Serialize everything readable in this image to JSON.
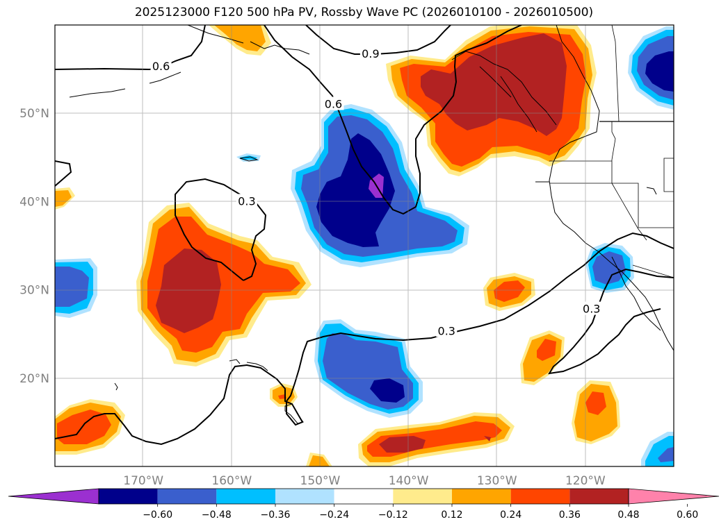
{
  "title": "2025123000 F120 500 hPa PV, Rossby Wave PC (2026010100 - 2026010500)",
  "map": {
    "projection": "lat-lon",
    "lon_range": [
      -180,
      -110
    ],
    "lat_range": [
      10,
      60
    ],
    "gridlines": true,
    "lat_ticks": [
      {
        "value": 20,
        "label": "20°N"
      },
      {
        "value": 30,
        "label": "30°N"
      },
      {
        "value": 40,
        "label": "40°N"
      },
      {
        "value": 50,
        "label": "50°N"
      }
    ],
    "lon_ticks": [
      {
        "value": -170,
        "label": "170°W"
      },
      {
        "value": -160,
        "label": "160°W"
      },
      {
        "value": -150,
        "label": "150°W"
      },
      {
        "value": -140,
        "label": "140°W"
      },
      {
        "value": -130,
        "label": "130°W"
      },
      {
        "value": -120,
        "label": "120°W"
      }
    ],
    "contour_labels": [
      {
        "text": "0.6",
        "lon": -168,
        "lat": 55.3
      },
      {
        "text": "0.9",
        "lon": -144.3,
        "lat": 56.7
      },
      {
        "text": "0.6",
        "lon": -148.5,
        "lat": 51.0
      },
      {
        "text": "0.3",
        "lon": -158.3,
        "lat": 40.0
      },
      {
        "text": "0.3",
        "lon": -135.7,
        "lat": 25.3
      },
      {
        "text": "0.3",
        "lon": -119.3,
        "lat": 27.8
      }
    ]
  },
  "colorbar": {
    "ticks": [
      "−0.60",
      "−0.48",
      "−0.36",
      "−0.24",
      "−0.12",
      "0.12",
      "0.24",
      "0.36",
      "0.48",
      "0.60"
    ],
    "colors": [
      "#9b30d0",
      "#00008b",
      "#3a5fcd",
      "#00bfff",
      "#b0e2ff",
      "#ffffff",
      "#ffeb8c",
      "#ffa500",
      "#ff4500",
      "#b22222",
      "#ff82ab"
    ],
    "extend": "both"
  },
  "legend_colors": {
    "purple": "#9b30d0",
    "navy": "#00008b",
    "blue": "#3a5fcd",
    "cyan": "#00bfff",
    "lightblue": "#b0e2ff",
    "yellow": "#ffeb8c",
    "orange": "#ffa500",
    "redorange": "#ff4500",
    "darkred": "#b22222",
    "pink": "#ff82ab"
  }
}
